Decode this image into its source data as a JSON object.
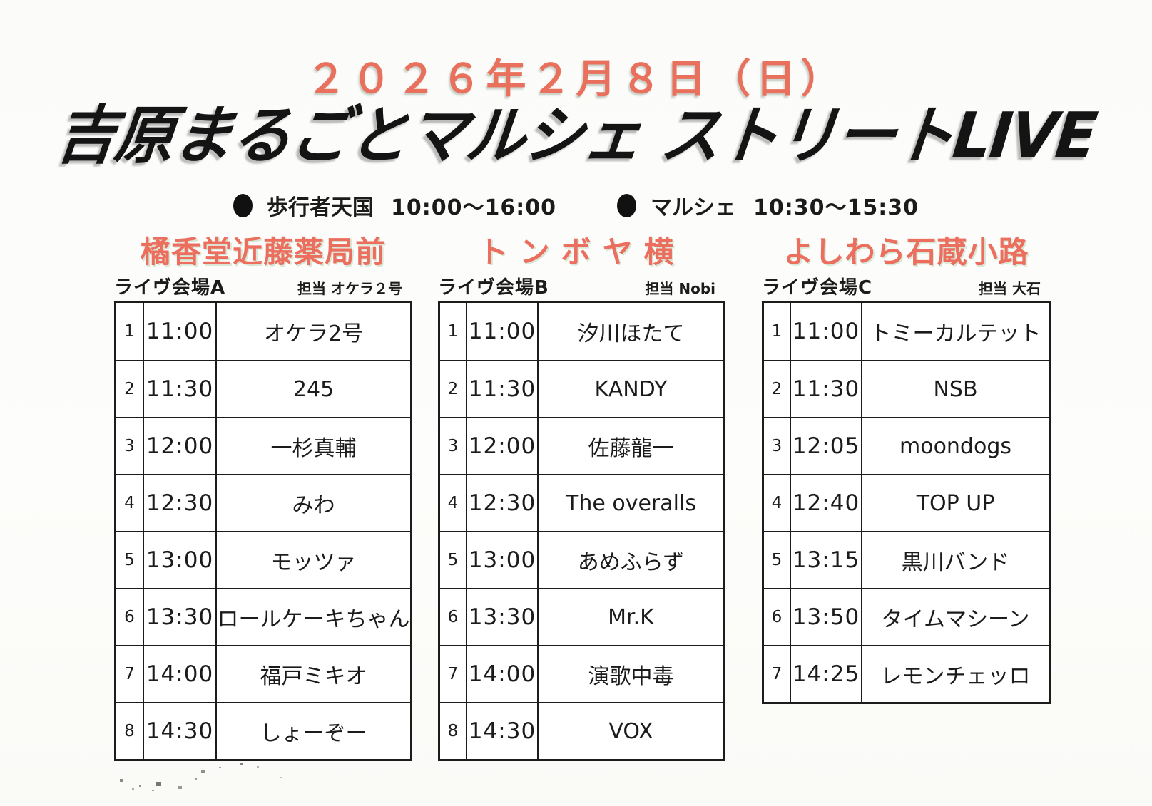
{
  "header": {
    "date": "２０２６年２月８日（日）",
    "title": "吉原まるごとマルシェ ストリートLIVE",
    "notices": [
      {
        "icon": "filled-circle-bullet",
        "label": "歩行者天国",
        "time": "10:00～16:00"
      },
      {
        "icon": "filled-circle-bullet",
        "label": "マルシェ",
        "time": "10:30～15:30"
      }
    ]
  },
  "colors": {
    "accent_coral": "#e9705c",
    "venue_header_coral": "#ec6e5e",
    "ink": "#1b1b1b",
    "table_border": "#1c1c1c"
  },
  "venues": [
    {
      "location": "橘香堂近藤薬局前",
      "stage": "ライヴ会場A",
      "manager": "担当 オケラ２号",
      "rows": [
        {
          "no": "1",
          "time": "11:00",
          "name": "オケラ2号"
        },
        {
          "no": "2",
          "time": "11:30",
          "name": "245"
        },
        {
          "no": "3",
          "time": "12:00",
          "name": "一杉真輔"
        },
        {
          "no": "4",
          "time": "12:30",
          "name": "みわ"
        },
        {
          "no": "5",
          "time": "13:00",
          "name": "モッツァ"
        },
        {
          "no": "6",
          "time": "13:30",
          "name": "ロールケーキちゃん"
        },
        {
          "no": "7",
          "time": "14:00",
          "name": "福戸ミキオ"
        },
        {
          "no": "8",
          "time": "14:30",
          "name": "しょーぞー"
        }
      ]
    },
    {
      "location": "トンボヤ横",
      "stage": "ライヴ会場B",
      "manager": "担当 Nobi",
      "rows": [
        {
          "no": "1",
          "time": "11:00",
          "name": "汐川ほたて"
        },
        {
          "no": "2",
          "time": "11:30",
          "name": "KANDY"
        },
        {
          "no": "3",
          "time": "12:00",
          "name": "佐藤龍一"
        },
        {
          "no": "4",
          "time": "12:30",
          "name": "The overalls"
        },
        {
          "no": "5",
          "time": "13:00",
          "name": "あめふらず"
        },
        {
          "no": "6",
          "time": "13:30",
          "name": "Mr.K"
        },
        {
          "no": "7",
          "time": "14:00",
          "name": "演歌中毒"
        },
        {
          "no": "8",
          "time": "14:30",
          "name": "VOX"
        }
      ]
    },
    {
      "location": "よしわら石蔵小路",
      "stage": "ライヴ会場C",
      "manager": "担当 大石",
      "rows": [
        {
          "no": "1",
          "time": "11:00",
          "name": "トミーカルテット"
        },
        {
          "no": "2",
          "time": "11:30",
          "name": "NSB"
        },
        {
          "no": "3",
          "time": "12:05",
          "name": "moondogs"
        },
        {
          "no": "4",
          "time": "12:40",
          "name": "TOP UP"
        },
        {
          "no": "5",
          "time": "13:15",
          "name": "黒川バンド"
        },
        {
          "no": "6",
          "time": "13:50",
          "name": "タイムマシーン"
        },
        {
          "no": "7",
          "time": "14:25",
          "name": "レモンチェッロ"
        }
      ]
    }
  ]
}
